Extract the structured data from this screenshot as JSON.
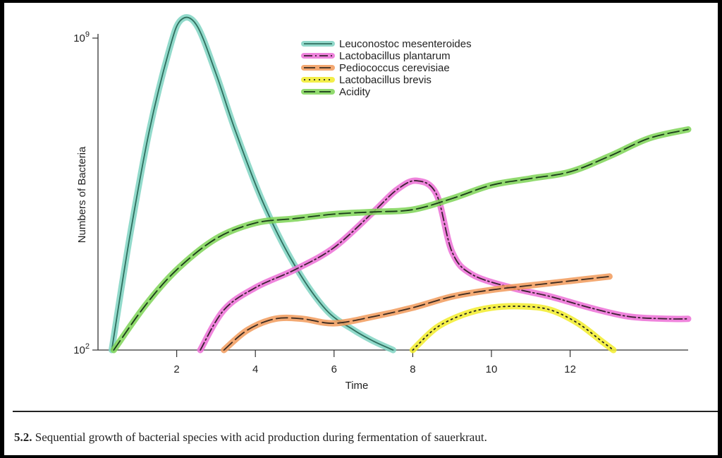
{
  "chart_data": {
    "type": "line",
    "xlabel": "Time",
    "ylabel": "Numbers of Bacteria",
    "xlim": [
      0,
      15
    ],
    "ylim": [
      2,
      9
    ],
    "yscale": "log",
    "x_ticks": [
      {
        "value": 2,
        "label": "2"
      },
      {
        "value": 4,
        "label": "4"
      },
      {
        "value": 6,
        "label": "6"
      },
      {
        "value": 8,
        "label": "8"
      },
      {
        "value": 10,
        "label": "10"
      },
      {
        "value": 12,
        "label": "12"
      }
    ],
    "y_ticks": [
      {
        "value": 2,
        "base": "10",
        "exp": "2"
      },
      {
        "value": 9,
        "base": "10",
        "exp": "9"
      }
    ],
    "legend_position": "top-center",
    "series": [
      {
        "name": "Leuconostoc mesenteroides",
        "color": "#2f6f5e",
        "highlight": "#7fd3c2",
        "dash": "solid",
        "points": [
          [
            0.35,
            2
          ],
          [
            0.8,
            4.5
          ],
          [
            1.3,
            6.9
          ],
          [
            1.8,
            8.7
          ],
          [
            2.1,
            9.4
          ],
          [
            2.5,
            9.3
          ],
          [
            3,
            8.2
          ],
          [
            3.5,
            6.9
          ],
          [
            4.2,
            5.3
          ],
          [
            5,
            3.9
          ],
          [
            5.8,
            2.9
          ],
          [
            6.5,
            2.45
          ],
          [
            7,
            2.2
          ],
          [
            7.5,
            2
          ]
        ]
      },
      {
        "name": "Lactobacillus plantarum",
        "color": "#3a2030",
        "highlight": "#ec6fd6",
        "dash": "dashdot",
        "points": [
          [
            2.6,
            2
          ],
          [
            3.2,
            2.9
          ],
          [
            4,
            3.4
          ],
          [
            5,
            3.8
          ],
          [
            6,
            4.3
          ],
          [
            7,
            5.1
          ],
          [
            7.6,
            5.6
          ],
          [
            8.1,
            5.8
          ],
          [
            8.6,
            5.5
          ],
          [
            9,
            4.2
          ],
          [
            9.5,
            3.7
          ],
          [
            10.5,
            3.4
          ],
          [
            11.5,
            3.2
          ],
          [
            12.5,
            2.95
          ],
          [
            13.5,
            2.75
          ],
          [
            14.5,
            2.7
          ],
          [
            15,
            2.7
          ]
        ]
      },
      {
        "name": "Pediococcus cerevisiae",
        "color": "#3a2a20",
        "highlight": "#f19a5a",
        "dash": "longdash",
        "points": [
          [
            3.2,
            2
          ],
          [
            3.8,
            2.45
          ],
          [
            4.5,
            2.7
          ],
          [
            5.2,
            2.7
          ],
          [
            6,
            2.6
          ],
          [
            7,
            2.75
          ],
          [
            8,
            2.95
          ],
          [
            9,
            3.2
          ],
          [
            10,
            3.35
          ],
          [
            11,
            3.45
          ],
          [
            12,
            3.55
          ],
          [
            13,
            3.65
          ]
        ]
      },
      {
        "name": "Lactobacillus brevis",
        "color": "#222222",
        "highlight": "#f2ec2a",
        "dash": "dotted",
        "points": [
          [
            8,
            2
          ],
          [
            8.6,
            2.5
          ],
          [
            9.3,
            2.8
          ],
          [
            10,
            2.95
          ],
          [
            10.8,
            2.98
          ],
          [
            11.5,
            2.9
          ],
          [
            12.2,
            2.6
          ],
          [
            12.8,
            2.2
          ],
          [
            13.1,
            2
          ]
        ]
      },
      {
        "name": "Acidity",
        "color": "#1a3a1a",
        "highlight": "#7ed456",
        "dash": "longdash",
        "points": [
          [
            0.4,
            2
          ],
          [
            1.2,
            3
          ],
          [
            2,
            3.8
          ],
          [
            3,
            4.5
          ],
          [
            4,
            4.85
          ],
          [
            5,
            4.95
          ],
          [
            6,
            5.05
          ],
          [
            7,
            5.1
          ],
          [
            8,
            5.15
          ],
          [
            9,
            5.4
          ],
          [
            10,
            5.7
          ],
          [
            11,
            5.85
          ],
          [
            12,
            6
          ],
          [
            13,
            6.35
          ],
          [
            14,
            6.75
          ],
          [
            15,
            6.95
          ]
        ]
      }
    ]
  },
  "caption": {
    "figure_number": "5.2.",
    "text": " Sequential growth of bacterial species with acid production during fermentation of sauerkraut."
  }
}
